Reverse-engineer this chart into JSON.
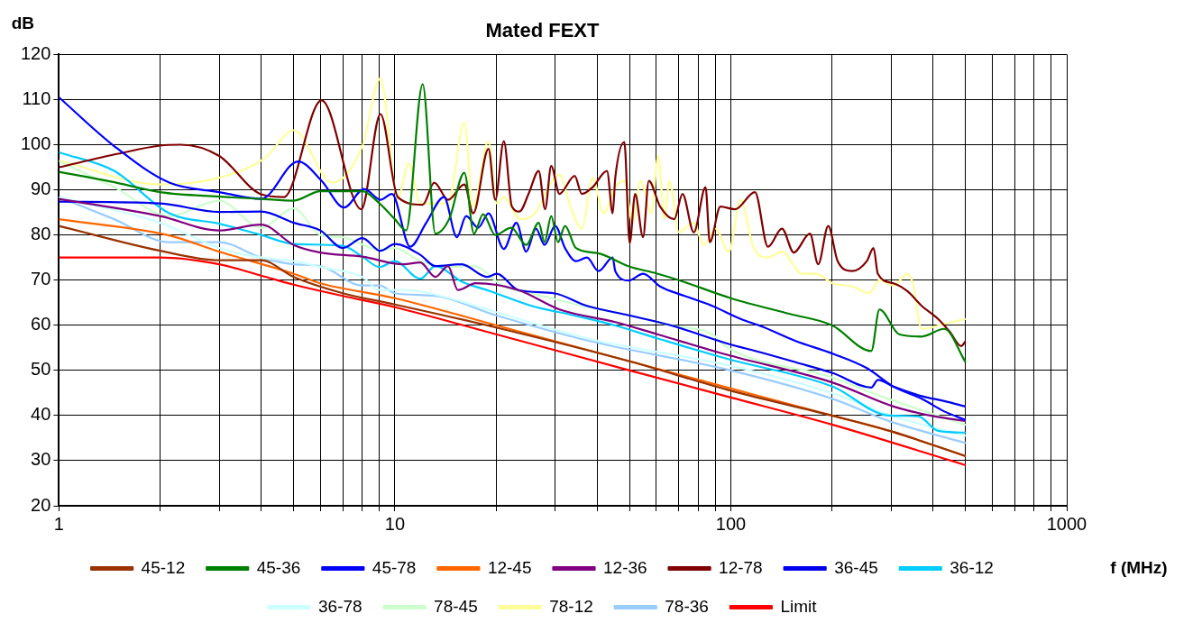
{
  "chart_data": {
    "type": "line",
    "title": "Mated FEXT",
    "xlabel": "f (MHz)",
    "ylabel": "dB",
    "log": "x",
    "grid": true,
    "legend": "bottom",
    "xlim": [
      1,
      1000
    ],
    "ylim": [
      20,
      120
    ],
    "xticks": [
      1,
      {
        "value": 2,
        "label": null
      },
      {
        "value": 3,
        "label": null
      },
      {
        "value": 4,
        "label": null
      },
      {
        "value": 5,
        "label": null
      },
      {
        "value": 6,
        "label": null
      },
      {
        "value": 7,
        "label": null
      },
      {
        "value": 8,
        "label": null
      },
      {
        "value": 9,
        "label": null
      },
      10,
      {
        "value": 20,
        "label": null
      },
      {
        "value": 30,
        "label": null
      },
      {
        "value": 40,
        "label": null
      },
      {
        "value": 50,
        "label": null
      },
      {
        "value": 60,
        "label": null
      },
      {
        "value": 70,
        "label": null
      },
      {
        "value": 80,
        "label": null
      },
      {
        "value": 90,
        "label": null
      },
      100,
      {
        "value": 200,
        "label": null
      },
      {
        "value": 300,
        "label": null
      },
      {
        "value": 400,
        "label": null
      },
      {
        "value": 500,
        "label": null
      },
      {
        "value": 600,
        "label": null
      },
      {
        "value": 700,
        "label": null
      },
      {
        "value": 800,
        "label": null
      },
      {
        "value": 900,
        "label": null
      },
      1000
    ],
    "yticks": [
      20,
      30,
      40,
      50,
      60,
      70,
      80,
      90,
      100,
      110,
      120
    ],
    "series": [
      {
        "name": "45-12",
        "color": "#993300",
        "x": [
          1,
          2,
          3,
          4,
          5,
          7,
          10,
          20,
          50,
          100,
          200,
          300,
          500
        ],
        "values": [
          82,
          76.5,
          74.4,
          74.4,
          70.7,
          67.1,
          64.6,
          59.5,
          52,
          45.5,
          40,
          36.5,
          31
        ]
      },
      {
        "name": "45-36",
        "color": "#008000",
        "x": [
          1,
          1.5,
          2,
          3,
          4,
          5,
          6,
          8,
          9,
          10,
          10.8,
          12.1,
          13.2,
          14.5,
          16.1,
          17.2,
          18.3,
          19.9,
          22.2,
          24.6,
          26.8,
          27.9,
          29.2,
          30.6,
          32.1,
          34.6,
          40,
          50,
          60,
          70,
          100,
          150,
          200,
          262,
          277,
          317,
          370,
          432,
          500
        ],
        "values": [
          94,
          91.5,
          89.5,
          88.5,
          88,
          87.6,
          89.7,
          89.7,
          87,
          83.5,
          81,
          113.4,
          80.3,
          83.5,
          93.8,
          80.3,
          84.6,
          80,
          81.6,
          77.8,
          82.7,
          78.4,
          84.2,
          78.4,
          82,
          77.1,
          76,
          73,
          71.5,
          70,
          66,
          62.5,
          60,
          54.3,
          63.5,
          58,
          57.5,
          59.2,
          51.8
        ]
      },
      {
        "name": "45-78",
        "color": "#0000ff",
        "x": [
          1,
          1.46,
          2.13,
          3,
          4,
          5.15,
          6.05,
          7.06,
          8.1,
          9.06,
          9.8,
          11.1,
          12.4,
          14,
          15.3,
          16.3,
          17.7,
          19,
          21.1,
          23,
          24.6,
          26.3,
          27.9,
          30,
          32.1,
          34.6,
          37.3,
          40.4,
          44.5,
          45.3,
          49.7,
          54.8,
          61.6,
          72.9,
          88,
          107,
          124,
          156,
          201,
          254,
          305,
          370,
          432,
          500
        ],
        "values": [
          110.5,
          99.7,
          91.6,
          89.5,
          88,
          96.3,
          92,
          86.1,
          90.2,
          87.8,
          89.1,
          77.4,
          82.7,
          88.4,
          79.5,
          84.2,
          81.6,
          84.8,
          76.9,
          82.7,
          76.3,
          81.4,
          77.8,
          82,
          77.1,
          74.2,
          75,
          72,
          75,
          72,
          69.9,
          71.4,
          68.6,
          66.5,
          64.3,
          61.4,
          59.7,
          56.5,
          53.7,
          50.5,
          46.4,
          43.7,
          40.9,
          39
        ]
      },
      {
        "name": "12-45",
        "color": "#ff6600",
        "x": [
          1,
          2.13,
          3,
          5,
          6,
          10,
          20,
          50,
          100,
          200,
          300,
          500
        ],
        "values": [
          83.5,
          79.9,
          76.3,
          71.4,
          69.3,
          66,
          60,
          52,
          46,
          40,
          36.5,
          31
        ]
      },
      {
        "name": "12-36",
        "color": "#800080",
        "x": [
          1,
          2,
          3,
          4,
          5,
          6,
          8,
          10.6,
          11.9,
          13.2,
          14.4,
          15.4,
          17.4,
          23.3,
          30.9,
          45.3,
          60.4,
          97,
          201,
          305,
          405,
          500
        ],
        "values": [
          88,
          84.2,
          81,
          82.3,
          77.8,
          76.1,
          75.2,
          73.5,
          73.9,
          70.7,
          73.1,
          67.8,
          69.3,
          67.8,
          63.5,
          60.7,
          58,
          53.5,
          47.3,
          42,
          39.8,
          38.8
        ]
      },
      {
        "name": "12-78",
        "color": "#800000",
        "x": [
          1,
          1.5,
          2,
          2.3,
          3,
          4,
          4.67,
          6.05,
          7.95,
          9.06,
          10.2,
          12.1,
          13.1,
          14.4,
          16.1,
          17.1,
          19,
          19.9,
          21.1,
          22.3,
          23.5,
          25,
          26.8,
          28,
          29.2,
          30.9,
          34.3,
          36,
          38.8,
          42.8,
          44.5,
          45.3,
          48.2,
          50,
          51.9,
          54.8,
          57,
          61.6,
          67.9,
          71.8,
          77.6,
          84.1,
          86.6,
          93.1,
          103,
          118,
          129,
          142,
          154,
          172,
          182,
          195,
          208,
          230,
          254,
          266,
          274,
          305,
          336,
          370,
          414,
          448,
          485,
          500
        ],
        "values": [
          95,
          98,
          99.8,
          100,
          97.5,
          89,
          88.4,
          109.8,
          85.7,
          106.8,
          88.4,
          86.7,
          91.6,
          87.8,
          91.2,
          84.8,
          99.1,
          87.8,
          100.8,
          86.3,
          85.2,
          89.1,
          94.2,
          85.7,
          95.3,
          89.1,
          93.1,
          89.1,
          90.6,
          94.2,
          84.8,
          92.7,
          100.6,
          78.2,
          89.1,
          79.5,
          92,
          86.3,
          83.5,
          89.1,
          80.6,
          90.6,
          78.4,
          86.3,
          85.7,
          89.5,
          77.4,
          81.4,
          76.1,
          80.3,
          73.5,
          82,
          74.2,
          72,
          74.2,
          77.1,
          71.4,
          69.3,
          67.5,
          64.3,
          61.4,
          58.6,
          55.4,
          56.5
        ]
      },
      {
        "name": "36-45",
        "color": "#0000ee",
        "x": [
          1,
          2,
          3,
          4,
          5,
          6,
          7,
          8,
          9.06,
          10,
          11.9,
          13.2,
          15.8,
          18.8,
          20.1,
          23.3,
          29.7,
          37.3,
          49.7,
          66.2,
          97,
          124,
          156,
          201,
          262,
          274,
          305,
          370,
          432,
          500
        ],
        "values": [
          87.4,
          87,
          85.1,
          85.2,
          82.7,
          81,
          77.1,
          79.3,
          76.5,
          78,
          75.6,
          73.1,
          73.5,
          70.7,
          71.4,
          67.8,
          67.1,
          64.3,
          62.2,
          60,
          56,
          53.9,
          51.8,
          49.4,
          46.2,
          47.9,
          46.4,
          44.3,
          43.2,
          42
        ]
      },
      {
        "name": "36-12",
        "color": "#00ccff",
        "x": [
          1,
          1.46,
          2.13,
          3,
          4,
          5,
          7,
          8,
          9,
          10,
          11.9,
          13.2,
          15.8,
          19.3,
          25.5,
          34,
          45,
          60.4,
          97,
          201,
          295,
          362,
          414,
          500
        ],
        "values": [
          98.3,
          94.2,
          84.8,
          82.5,
          80,
          78,
          77.6,
          75.2,
          72.9,
          74.2,
          70.3,
          73.1,
          69.7,
          67.5,
          64.3,
          62.2,
          60,
          57.1,
          52.6,
          46.4,
          40,
          39.8,
          36.6,
          36.2
        ]
      },
      {
        "name": "36-78",
        "color": "#ccffff",
        "x": [
          1,
          2,
          3,
          4,
          5,
          6,
          8,
          9,
          10,
          11.9,
          15.2,
          20,
          38,
          100,
          200,
          300,
          500
        ],
        "values": [
          88.4,
          82.7,
          77.1,
          75,
          74.2,
          72.9,
          70.7,
          67.8,
          67.8,
          67.5,
          65.6,
          62.9,
          57,
          51,
          45,
          40,
          35.5
        ]
      },
      {
        "name": "78-45",
        "color": "#ccffcc",
        "x": [
          1,
          1.46,
          2.13,
          3,
          4,
          5,
          6,
          7,
          9,
          10,
          11.9,
          14.4,
          17.1,
          21.1,
          27.4,
          36,
          49.7,
          66,
          88,
          97,
          201,
          270,
          500
        ],
        "values": [
          96.3,
          90.6,
          84.2,
          87.6,
          81.6,
          85.9,
          80,
          79.5,
          76.7,
          77.1,
          74.2,
          72.9,
          73.1,
          68.6,
          66.5,
          64.3,
          62.2,
          60,
          58,
          55.2,
          48.4,
          44.7,
          37.9
        ]
      },
      {
        "name": "78-12",
        "color": "#ffff99",
        "x": [
          1,
          2,
          3,
          4.1,
          5,
          6.5,
          8,
          9.06,
          10.2,
          11,
          11.9,
          14.4,
          16.1,
          17.1,
          19,
          20.1,
          21.1,
          23.6,
          26,
          28.7,
          30.9,
          33.3,
          36,
          38.8,
          41.8,
          45.3,
          48.2,
          51,
          53.9,
          58,
          60.8,
          63.4,
          65.7,
          70,
          77.6,
          83,
          90,
          98.6,
          107,
          117,
          129,
          142,
          163,
          179,
          201,
          230,
          258,
          277,
          305,
          336,
          348,
          370,
          432,
          500
        ],
        "values": [
          96.5,
          91.2,
          92.7,
          97,
          103.2,
          91.6,
          99.7,
          114.7,
          88,
          95.9,
          87,
          87,
          105,
          86.3,
          100.8,
          87,
          88.4,
          83.5,
          84.6,
          90.6,
          93.4,
          86.3,
          81.4,
          92.7,
          84.8,
          90.6,
          92,
          82.7,
          92,
          84.8,
          97.6,
          83.5,
          92,
          80.6,
          82.7,
          77.8,
          81.4,
          76.3,
          87.8,
          77.1,
          75,
          76.3,
          71.4,
          71.4,
          69.3,
          68.6,
          67.1,
          70,
          68.8,
          71.4,
          69.3,
          59.2,
          60.3,
          61.4
        ]
      },
      {
        "name": "78-36",
        "color": "#99ccff",
        "x": [
          1,
          1.46,
          2.13,
          3,
          4,
          5,
          6,
          8,
          9,
          10,
          13.2,
          20,
          38,
          100,
          201,
          295,
          500
        ],
        "values": [
          88.4,
          83.5,
          78.4,
          78.4,
          75,
          73.5,
          73.1,
          68.8,
          68.8,
          67.1,
          66.5,
          62.2,
          56.5,
          50,
          43.7,
          38.8,
          33.9
        ]
      },
      {
        "name": "Limit",
        "color": "#ff0000",
        "x": [
          1,
          2,
          3,
          4,
          5,
          7,
          10,
          20,
          50,
          100,
          200,
          500
        ],
        "values": [
          75,
          75,
          73.5,
          71,
          69,
          66.5,
          64,
          58,
          50,
          44,
          38,
          29
        ]
      }
    ]
  }
}
